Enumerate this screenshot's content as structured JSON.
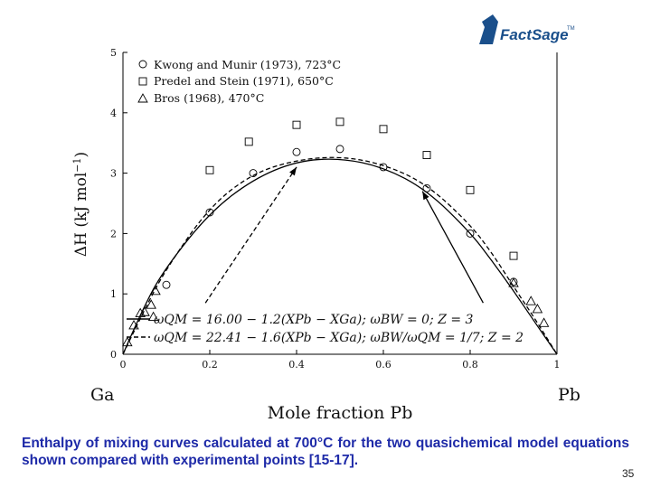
{
  "logo": {
    "text": "FactSage",
    "trademark": "TM",
    "color": "#1a4f8b"
  },
  "caption": "Enthalpy of mixing curves calculated at 700°C for the two quasichemical model equations shown compared with experimental points [15-17].",
  "page_number": "35",
  "chart_data": {
    "type": "scatter",
    "xlabel": "Mole fraction Pb",
    "ylabel_parts": {
      "base": "ΔH (kJ mol",
      "sup": "−1",
      "end": ")"
    },
    "xlim": [
      0,
      1
    ],
    "ylim": [
      0,
      5
    ],
    "x_ticks": [
      "0",
      "0.2",
      "0.4",
      "0.6",
      "0.8",
      "1"
    ],
    "y_ticks": [
      "0",
      "1",
      "2",
      "3",
      "4",
      "5"
    ],
    "end_labels": {
      "left": "Ga",
      "right": "Pb"
    },
    "grid": false,
    "legend_position": "top-left",
    "series": [
      {
        "name": "Kwong and Munir (1973), 723°C",
        "marker": "circle",
        "x": [
          0.1,
          0.2,
          0.3,
          0.4,
          0.5,
          0.6,
          0.7,
          0.8,
          0.9
        ],
        "y": [
          1.15,
          2.35,
          3.0,
          3.35,
          3.4,
          3.1,
          2.75,
          2.0,
          1.2
        ]
      },
      {
        "name": "Predel and Stein (1971), 650°C",
        "marker": "square",
        "x": [
          0.2,
          0.29,
          0.4,
          0.5,
          0.6,
          0.7,
          0.8,
          0.9
        ],
        "y": [
          3.05,
          3.52,
          3.8,
          3.85,
          3.73,
          3.3,
          2.72,
          1.63
        ]
      },
      {
        "name": "Bros (1968), 470°C",
        "marker": "triangle",
        "x": [
          0.01,
          0.025,
          0.04,
          0.05,
          0.065,
          0.075,
          0.07,
          0.9,
          0.94,
          0.955,
          0.97
        ],
        "y": [
          0.2,
          0.48,
          0.68,
          0.7,
          0.82,
          1.05,
          0.62,
          1.18,
          0.88,
          0.75,
          0.52
        ]
      }
    ],
    "curves": [
      {
        "style": "solid",
        "label": "ωQM = 16.00 − 1.2(XPb − XGa); ωBW = 0; Z = 3",
        "x": [
          0,
          0.05,
          0.1,
          0.2,
          0.3,
          0.4,
          0.5,
          0.6,
          0.7,
          0.8,
          0.85,
          0.9,
          0.95,
          1
        ],
        "y": [
          0,
          0.83,
          1.45,
          2.35,
          2.9,
          3.2,
          3.25,
          3.1,
          2.72,
          2.02,
          1.55,
          1.05,
          0.52,
          0
        ]
      },
      {
        "style": "dashed",
        "label": "ωQM = 22.41 − 1.6(XPb − XGa); ωBW/ωQM = 1/7; Z = 2",
        "x": [
          0,
          0.05,
          0.1,
          0.2,
          0.3,
          0.4,
          0.5,
          0.6,
          0.7,
          0.8,
          0.85,
          0.9,
          0.95,
          1
        ],
        "y": [
          0,
          0.75,
          1.42,
          2.45,
          3.0,
          3.22,
          3.28,
          3.15,
          2.82,
          2.15,
          1.68,
          1.12,
          0.58,
          0
        ]
      }
    ],
    "annotations": {
      "eq1": {
        "lhs": "ωQM = 16.00 − 1.2(XPb − XGa); ωBW = 0; Z = 3"
      },
      "eq2": {
        "lhs": "ωQM = 22.41 − 1.6(XPb − XGa); ωBW/ωQM = 1/7; Z = 2"
      }
    },
    "arrows": [
      {
        "style": "dashed",
        "from": [
          0.19,
          0.85
        ],
        "to": [
          0.4,
          3.1
        ]
      },
      {
        "style": "solid",
        "from": [
          0.83,
          0.85
        ],
        "to": [
          0.69,
          2.7
        ]
      }
    ]
  }
}
